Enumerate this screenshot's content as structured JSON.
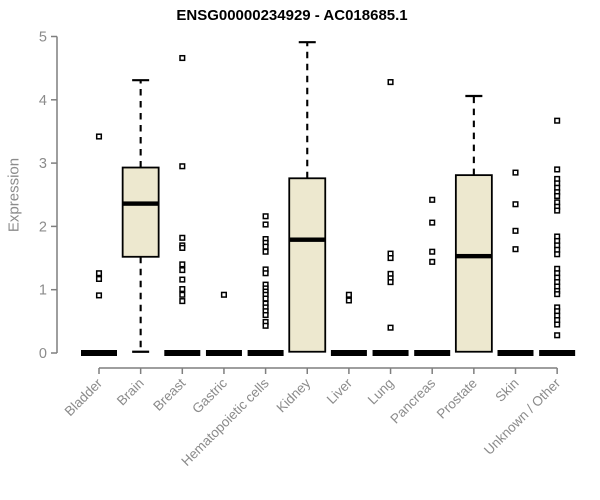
{
  "chart_data": {
    "type": "boxplot",
    "title": "ENSG00000234929 - AC018685.1",
    "ylabel": "Expression",
    "xlabel": "",
    "ylim": [
      0,
      5
    ],
    "yticks": [
      0,
      1,
      2,
      3,
      4,
      5
    ],
    "grid": false,
    "legend": "none",
    "xticklabel_rotation": 45,
    "colors": {
      "box_fill": "#ede8cf",
      "box_stroke": "#000000",
      "median": "#000000",
      "axis": "#7f7f7f",
      "tick_label": "#8b8b8b",
      "title": "#000000",
      "outlier_fill": "#ffffff"
    },
    "categories": [
      "Bladder",
      "Brain",
      "Breast",
      "Gastric",
      "Hematopoietic cells",
      "Kidney",
      "Liver",
      "Lung",
      "Pancreas",
      "Prostate",
      "Skin",
      "Unknown / Other"
    ],
    "series": [
      {
        "name": "Bladder",
        "collapsed": true,
        "low": 0,
        "q1": 0,
        "median": 0,
        "q3": 0,
        "high": 0,
        "outliers": [
          3.42,
          1.26,
          1.17,
          0.91
        ]
      },
      {
        "name": "Brain",
        "collapsed": false,
        "low": 0.02,
        "q1": 1.52,
        "median": 2.36,
        "q3": 2.93,
        "high": 4.31,
        "outliers": []
      },
      {
        "name": "Breast",
        "collapsed": true,
        "low": 0,
        "q1": 0,
        "median": 0,
        "q3": 0,
        "high": 0,
        "outliers": [
          4.66,
          2.95,
          1.82,
          1.7,
          1.66,
          1.4,
          1.31,
          1.16,
          1.01,
          0.92,
          0.82
        ]
      },
      {
        "name": "Gastric",
        "collapsed": true,
        "low": 0,
        "q1": 0,
        "median": 0,
        "q3": 0,
        "high": 0,
        "outliers": [
          0.92
        ]
      },
      {
        "name": "Hematopoietic cells",
        "collapsed": true,
        "low": 0,
        "q1": 0,
        "median": 0,
        "q3": 0,
        "high": 0,
        "outliers": [
          2.16,
          2.03,
          1.8,
          1.74,
          1.68,
          1.6,
          1.32,
          1.26,
          1.08,
          1.02,
          0.97,
          0.92,
          0.86,
          0.78,
          0.72,
          0.66,
          0.6,
          0.49,
          0.43
        ]
      },
      {
        "name": "Kidney",
        "collapsed": false,
        "low": 0.02,
        "q1": 0.02,
        "median": 1.79,
        "q3": 2.76,
        "high": 4.91,
        "outliers": []
      },
      {
        "name": "Liver",
        "collapsed": true,
        "low": 0,
        "q1": 0,
        "median": 0,
        "q3": 0,
        "high": 0,
        "outliers": [
          0.92,
          0.83
        ]
      },
      {
        "name": "Lung",
        "collapsed": true,
        "low": 0,
        "q1": 0,
        "median": 0,
        "q3": 0,
        "high": 0,
        "outliers": [
          4.28,
          1.57,
          1.5,
          1.25,
          1.18,
          1.12,
          0.4
        ]
      },
      {
        "name": "Pancreas",
        "collapsed": true,
        "low": 0,
        "q1": 0,
        "median": 0,
        "q3": 0,
        "high": 0,
        "outliers": [
          2.42,
          2.06,
          1.6,
          1.44
        ]
      },
      {
        "name": "Prostate",
        "collapsed": false,
        "low": 0.02,
        "q1": 0.02,
        "median": 1.53,
        "q3": 2.81,
        "high": 4.06,
        "outliers": []
      },
      {
        "name": "Skin",
        "collapsed": true,
        "low": 0,
        "q1": 0,
        "median": 0,
        "q3": 0,
        "high": 0,
        "outliers": [
          2.85,
          2.35,
          1.93,
          1.64
        ]
      },
      {
        "name": "Unknown / Other",
        "collapsed": true,
        "low": 0,
        "q1": 0,
        "median": 0,
        "q3": 0,
        "high": 0,
        "outliers": [
          3.67,
          2.9,
          2.75,
          2.68,
          2.61,
          2.54,
          2.48,
          2.38,
          2.31,
          2.25,
          1.84,
          1.77,
          1.7,
          1.63,
          1.56,
          1.33,
          1.26,
          1.19,
          1.12,
          1.05,
          0.98,
          0.93,
          0.72,
          0.66,
          0.59,
          0.52,
          0.45,
          0.28
        ]
      }
    ]
  }
}
